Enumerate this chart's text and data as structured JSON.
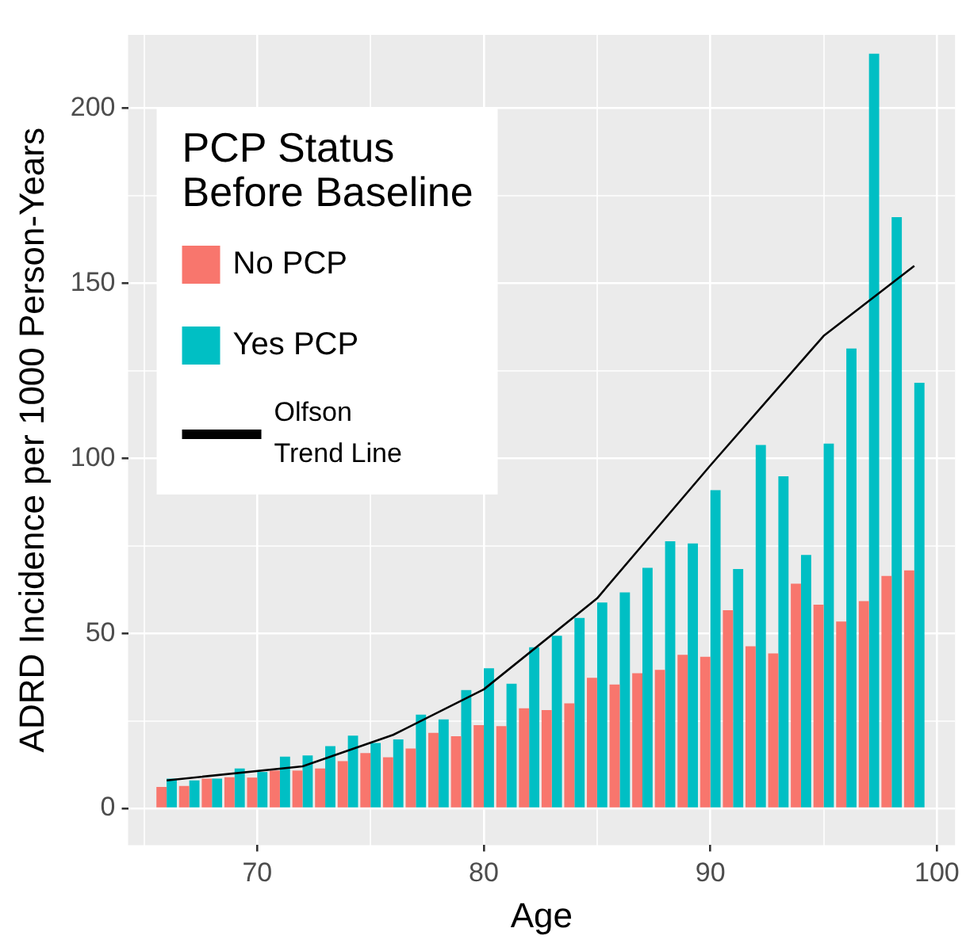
{
  "chart_data": {
    "type": "bar",
    "xlabel": "Age",
    "ylabel": "ADRD Incidence per 1000 Person-Years",
    "legend_title": "PCP Status Before Baseline",
    "x": [
      66,
      67,
      68,
      69,
      70,
      71,
      72,
      73,
      74,
      75,
      76,
      77,
      78,
      79,
      80,
      81,
      82,
      83,
      84,
      85,
      86,
      87,
      88,
      89,
      90,
      91,
      92,
      93,
      94,
      95,
      96,
      97,
      98,
      99
    ],
    "series": [
      {
        "name": "No PCP",
        "color": "#f8766d",
        "values": [
          6.1,
          6.4,
          8.5,
          8.9,
          8.8,
          10.8,
          10.8,
          11.4,
          13.5,
          15.8,
          14.6,
          17.1,
          21.6,
          20.6,
          23.8,
          23.5,
          28.6,
          28.1,
          30.0,
          37.3,
          35.4,
          38.6,
          39.6,
          43.9,
          43.3,
          56.6,
          46.3,
          44.3,
          64.2,
          58.2,
          53.4,
          59.2,
          66.4,
          68.0
        ]
      },
      {
        "name": "Yes PCP",
        "color": "#00bfc4",
        "values": [
          8.5,
          8.0,
          8.5,
          11.4,
          10.4,
          14.8,
          15.1,
          17.8,
          20.8,
          18.7,
          19.7,
          26.8,
          25.4,
          33.8,
          40.0,
          35.6,
          46.0,
          49.3,
          54.4,
          58.8,
          61.7,
          68.7,
          76.3,
          75.7,
          90.9,
          68.4,
          103.8,
          94.9,
          72.4,
          104.2,
          131.4,
          215.6,
          168.9,
          121.6
        ]
      },
      {
        "name": "Olfson Trend Line",
        "type": "line",
        "color": "#000000",
        "x": [
          66,
          72,
          76,
          80,
          85,
          90,
          95,
          99
        ],
        "values": [
          8,
          12,
          21,
          34,
          60,
          98,
          135,
          155
        ]
      }
    ],
    "xlim": [
      64.3,
      100.8
    ],
    "xticks": [
      {
        "value": 65,
        "label": null
      },
      70,
      {
        "value": 75,
        "label": null
      },
      80,
      {
        "value": 85,
        "label": null
      },
      90,
      {
        "value": 95,
        "label": null
      },
      100
    ],
    "ylim": [
      -10.5,
      221
    ],
    "yticks": [
      0,
      {
        "value": 25,
        "label": null
      },
      50,
      {
        "value": 75,
        "label": null
      },
      100,
      {
        "value": 125,
        "label": null
      },
      150,
      {
        "value": 175,
        "label": null
      },
      200
    ],
    "grid": true,
    "legend": "top left",
    "marker": "none"
  }
}
